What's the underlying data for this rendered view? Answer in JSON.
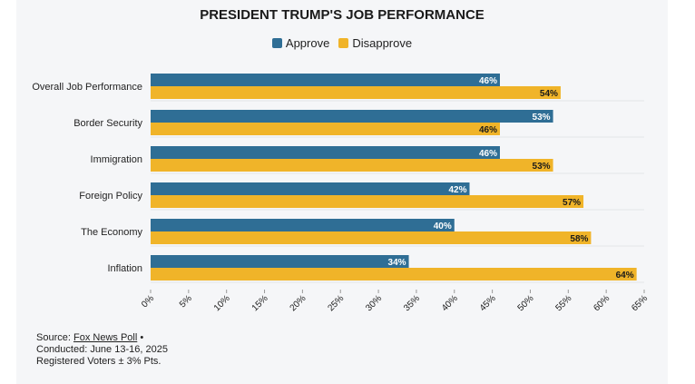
{
  "chart_data": {
    "type": "bar",
    "orientation": "horizontal",
    "title": "PRESIDENT TRUMP'S JOB PERFORMANCE",
    "categories": [
      "Overall Job Performance",
      "Border Security",
      "Immigration",
      "Foreign Policy",
      "The Economy",
      "Inflation"
    ],
    "series": [
      {
        "name": "Approve",
        "color": "#2f6e95",
        "values": [
          46,
          53,
          46,
          42,
          40,
          34
        ]
      },
      {
        "name": "Disapprove",
        "color": "#f0b429",
        "values": [
          54,
          46,
          53,
          57,
          58,
          64
        ]
      }
    ],
    "value_suffix": "%",
    "xlim": [
      0,
      65
    ],
    "xticks": [
      0,
      5,
      10,
      15,
      20,
      25,
      30,
      35,
      40,
      45,
      50,
      55,
      60,
      65
    ],
    "xtick_labels": [
      "0%",
      "5%",
      "10%",
      "15%",
      "20%",
      "25%",
      "30%",
      "35%",
      "40%",
      "45%",
      "50%",
      "55%",
      "60%",
      "65%"
    ],
    "legend_position": "top-center",
    "grid": "horizontal-separators"
  },
  "legend": {
    "approve_label": "Approve",
    "disapprove_label": "Disapprove"
  },
  "source": {
    "prefix": "Source:",
    "link_text": "Fox News Poll",
    "bullet": "•",
    "conducted": "Conducted: June 13-16, 2025",
    "voters": "Registered Voters ± 3% Pts."
  }
}
